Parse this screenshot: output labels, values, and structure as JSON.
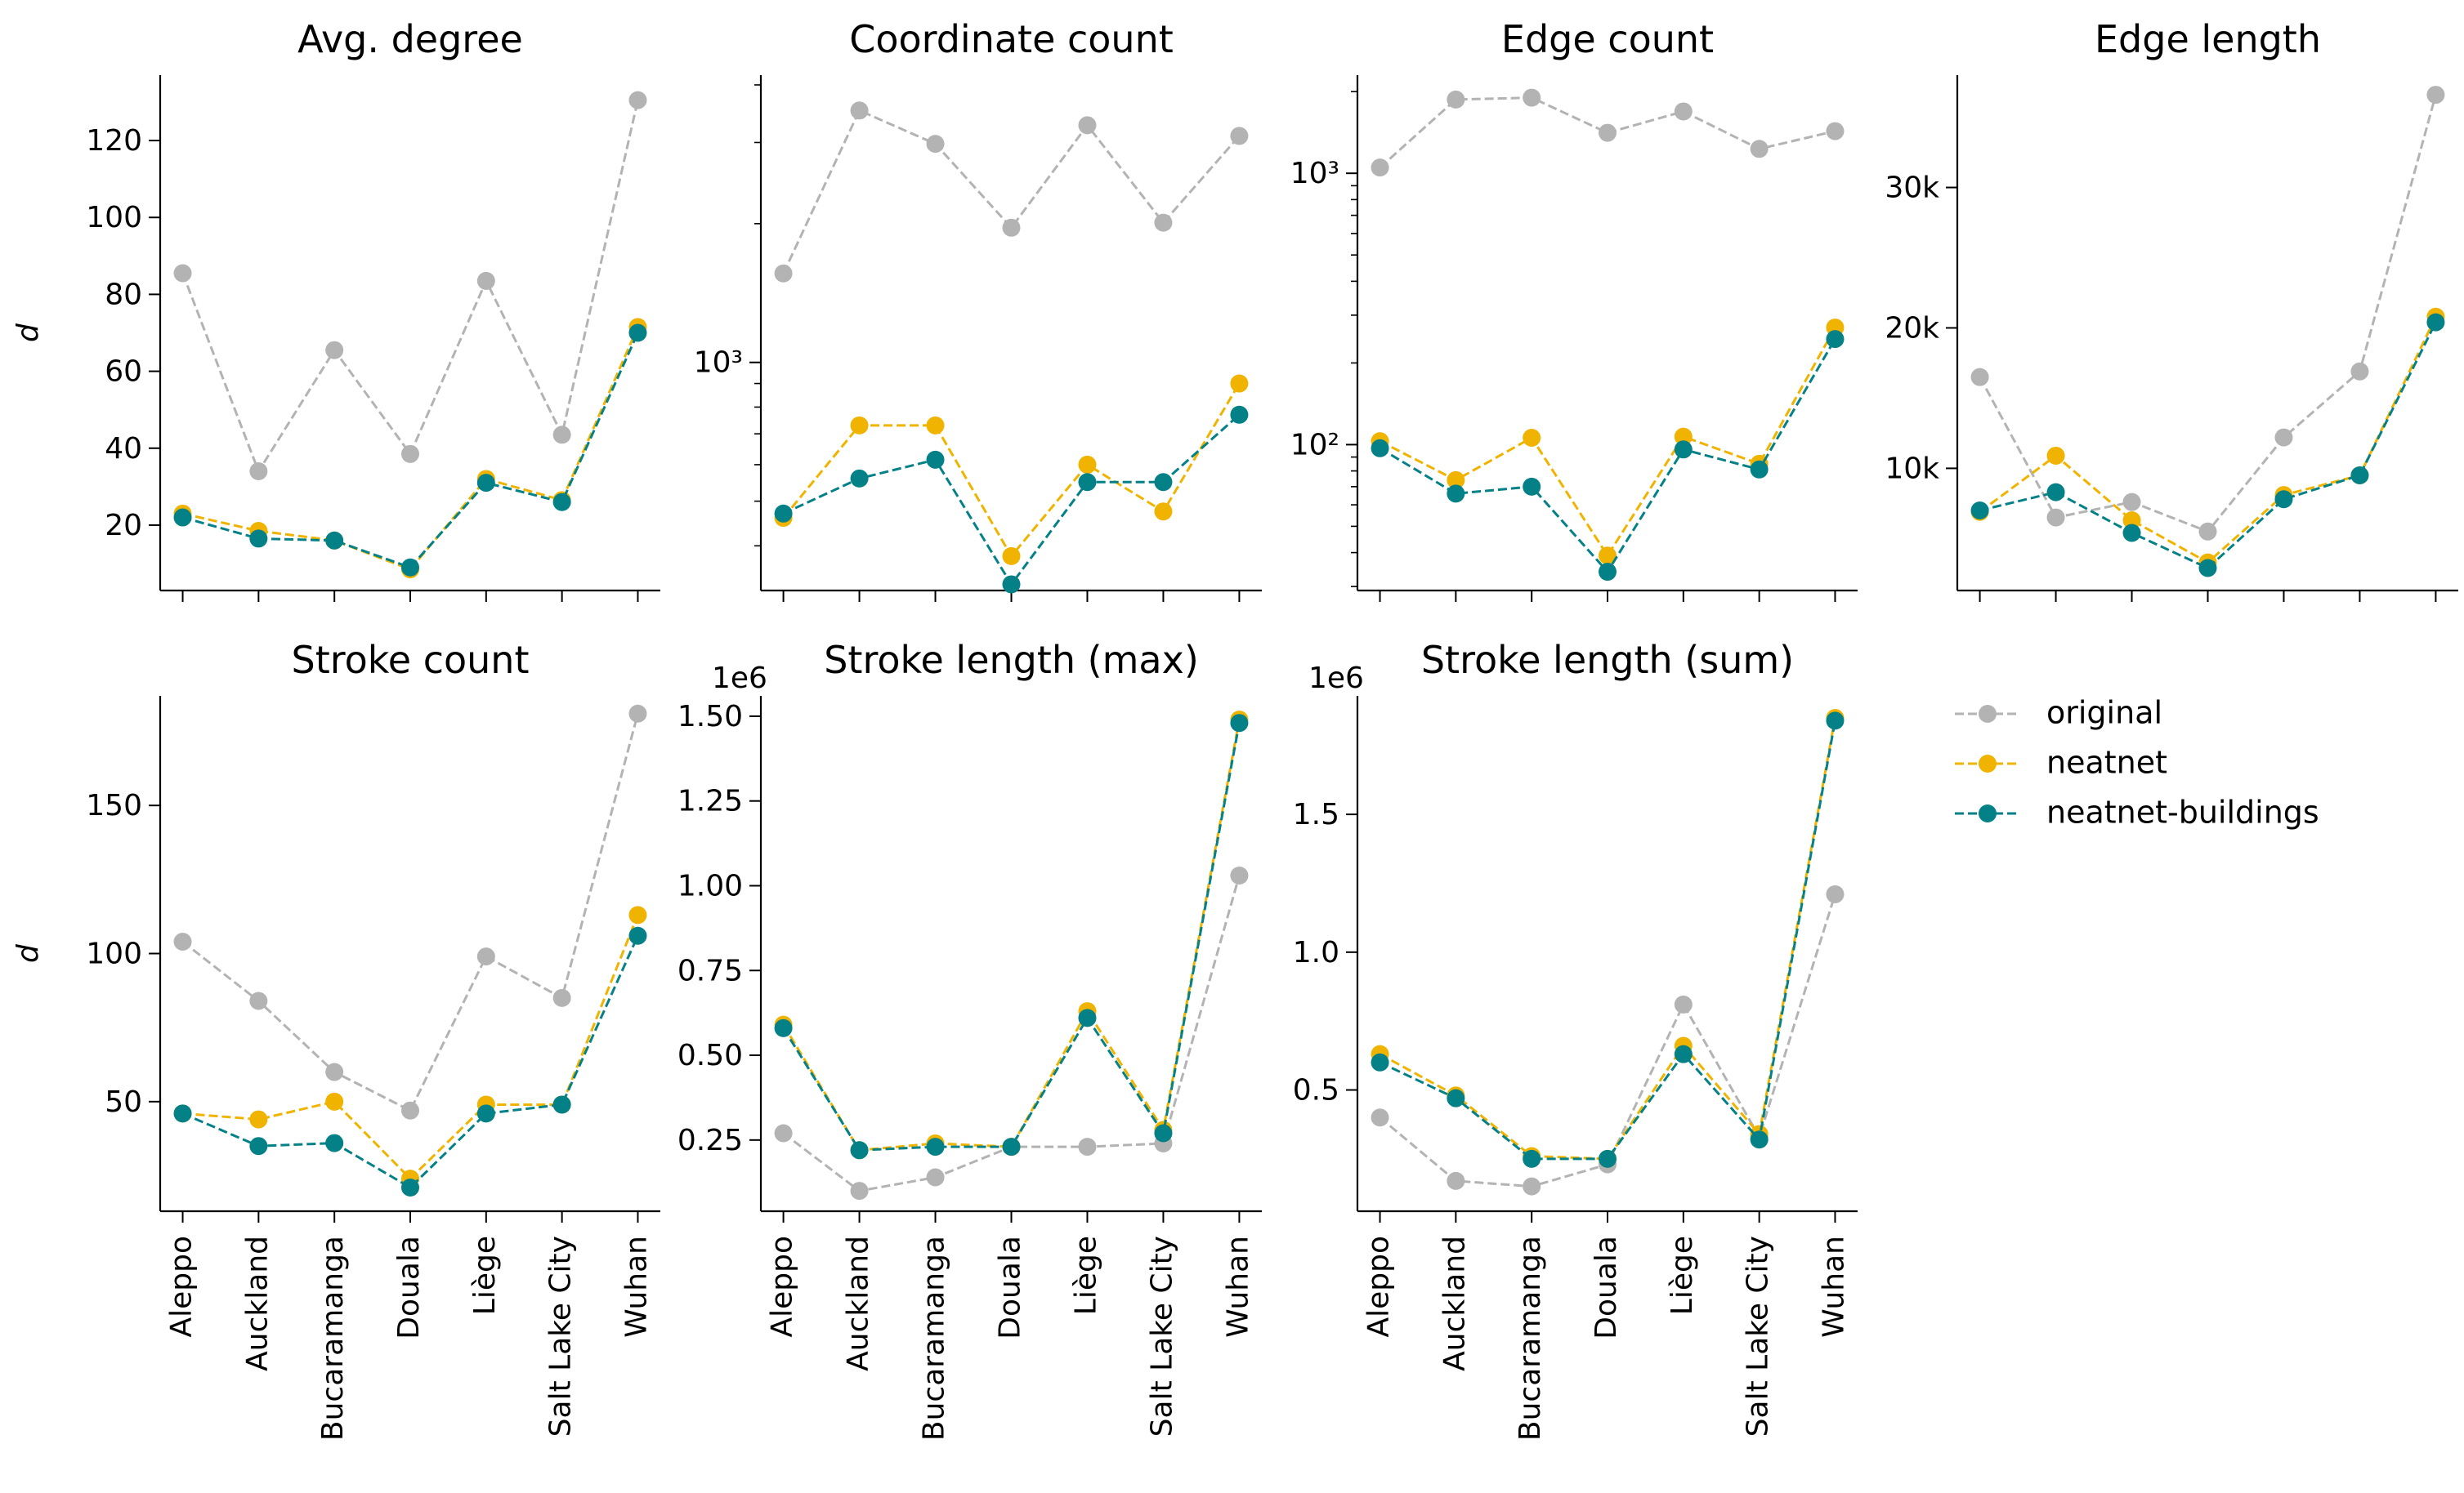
{
  "colors": {
    "original": "#b3b3b3",
    "neatnet": "#f0b400",
    "neatnet-buildings": "#038187"
  },
  "legend": [
    {
      "key": "original",
      "label": "original"
    },
    {
      "key": "neatnet",
      "label": "neatnet"
    },
    {
      "key": "neatnet-buildings",
      "label": "neatnet-buildings"
    }
  ],
  "chart_data": [
    {
      "type": "line",
      "title": "Avg. degree",
      "ylabel": "d",
      "scale": "linear",
      "ylim": [
        3,
        137
      ],
      "yticks": [
        20,
        40,
        60,
        80,
        100,
        120
      ],
      "ytick_labels": [
        "20",
        "40",
        "60",
        "80",
        "100",
        "120"
      ],
      "categories": [
        "Aleppo",
        "Auckland",
        "Bucaramanga",
        "Douala",
        "Liège",
        "Salt Lake City",
        "Wuhan"
      ],
      "series": [
        {
          "name": "original",
          "values": [
            85.5,
            34,
            65.5,
            38.5,
            83.5,
            43.5,
            130.5
          ]
        },
        {
          "name": "neatnet",
          "values": [
            23,
            18.5,
            16,
            8.5,
            32,
            26.5,
            71.5
          ]
        },
        {
          "name": "neatnet-buildings",
          "values": [
            22,
            16.5,
            16,
            9,
            31,
            26,
            70
          ]
        }
      ]
    },
    {
      "type": "line",
      "title": "Coordinate count",
      "ylabel": "",
      "scale": "log",
      "ylim": [
        320,
        4200
      ],
      "yticks": [
        1000
      ],
      "ytick_labels": [
        "10³"
      ],
      "categories": [
        "Aleppo",
        "Auckland",
        "Bucaramanga",
        "Douala",
        "Liège",
        "Salt Lake City",
        "Wuhan"
      ],
      "series": [
        {
          "name": "original",
          "values": [
            1560,
            3520,
            2980,
            1960,
            3270,
            2010,
            3100
          ]
        },
        {
          "name": "neatnet",
          "values": [
            460,
            730,
            730,
            380,
            600,
            475,
            900
          ]
        },
        {
          "name": "neatnet-buildings",
          "values": [
            470,
            560,
            615,
            330,
            550,
            550,
            770
          ]
        }
      ]
    },
    {
      "type": "line",
      "title": "Edge count",
      "ylabel": "",
      "scale": "log",
      "ylim": [
        29,
        2300
      ],
      "yticks": [
        100,
        1000
      ],
      "ytick_labels": [
        "10²",
        "10³"
      ],
      "categories": [
        "Aleppo",
        "Auckland",
        "Bucaramanga",
        "Douala",
        "Liège",
        "Salt Lake City",
        "Wuhan"
      ],
      "series": [
        {
          "name": "original",
          "values": [
            1050,
            1870,
            1900,
            1410,
            1690,
            1230,
            1430
          ]
        },
        {
          "name": "neatnet",
          "values": [
            103,
            74,
            106,
            39,
            107,
            85,
            270
          ]
        },
        {
          "name": "neatnet-buildings",
          "values": [
            97,
            66,
            70,
            34,
            96,
            81,
            245
          ]
        }
      ]
    },
    {
      "type": "line",
      "title": "Edge length",
      "ylabel": "",
      "scale": "linear",
      "ylim": [
        1300,
        38000
      ],
      "yticks": [
        10000,
        20000,
        30000
      ],
      "ytick_labels": [
        "10k",
        "20k",
        "30k"
      ],
      "categories": [
        "Aleppo",
        "Auckland",
        "Bucaramanga",
        "Douala",
        "Liège",
        "Salt Lake City",
        "Wuhan"
      ],
      "series": [
        {
          "name": "original",
          "values": [
            16500,
            6500,
            7600,
            5500,
            12200,
            16900,
            36600
          ]
        },
        {
          "name": "neatnet",
          "values": [
            6900,
            10900,
            6300,
            3300,
            8100,
            9500,
            20800
          ]
        },
        {
          "name": "neatnet-buildings",
          "values": [
            7000,
            8300,
            5400,
            2900,
            7800,
            9500,
            20400
          ]
        }
      ]
    },
    {
      "type": "line",
      "title": "Stroke count",
      "ylabel": "d",
      "scale": "linear",
      "ylim": [
        13,
        187
      ],
      "yticks": [
        50,
        100,
        150
      ],
      "ytick_labels": [
        "50",
        "100",
        "150"
      ],
      "categories": [
        "Aleppo",
        "Auckland",
        "Bucaramanga",
        "Douala",
        "Liège",
        "Salt Lake City",
        "Wuhan"
      ],
      "series": [
        {
          "name": "original",
          "values": [
            104,
            84,
            60,
            47,
            99,
            85,
            181
          ]
        },
        {
          "name": "neatnet",
          "values": [
            46,
            44,
            50,
            24,
            49,
            49,
            113
          ]
        },
        {
          "name": "neatnet-buildings",
          "values": [
            46,
            35,
            36,
            21,
            46,
            49,
            106
          ]
        }
      ]
    },
    {
      "type": "line",
      "title": "Stroke length (max)",
      "ylabel": "",
      "offset_label": "1e6",
      "scale": "linear",
      "ylim": [
        0.04,
        1.56
      ],
      "yticks": [
        0.25,
        0.5,
        0.75,
        1.0,
        1.25,
        1.5
      ],
      "ytick_labels": [
        "0.25",
        "0.50",
        "0.75",
        "1.00",
        "1.25",
        "1.50"
      ],
      "categories": [
        "Aleppo",
        "Auckland",
        "Bucaramanga",
        "Douala",
        "Liège",
        "Salt Lake City",
        "Wuhan"
      ],
      "series": [
        {
          "name": "original",
          "values": [
            0.27,
            0.1,
            0.14,
            0.23,
            0.23,
            0.24,
            1.03
          ]
        },
        {
          "name": "neatnet",
          "values": [
            0.59,
            0.22,
            0.24,
            0.23,
            0.63,
            0.28,
            1.49
          ]
        },
        {
          "name": "neatnet-buildings",
          "values": [
            0.58,
            0.22,
            0.23,
            0.23,
            0.61,
            0.27,
            1.48
          ]
        }
      ]
    },
    {
      "type": "line",
      "title": "Stroke length (sum)",
      "ylabel": "",
      "offset_label": "1e6",
      "scale": "linear",
      "ylim": [
        0.06,
        1.93
      ],
      "yticks": [
        0.5,
        1.0,
        1.5
      ],
      "ytick_labels": [
        "0.5",
        "1.0",
        "1.5"
      ],
      "categories": [
        "Aleppo",
        "Auckland",
        "Bucaramanga",
        "Douala",
        "Liège",
        "Salt Lake City",
        "Wuhan"
      ],
      "series": [
        {
          "name": "original",
          "values": [
            0.4,
            0.17,
            0.15,
            0.23,
            0.81,
            0.33,
            1.21
          ]
        },
        {
          "name": "neatnet",
          "values": [
            0.63,
            0.48,
            0.26,
            0.25,
            0.66,
            0.34,
            1.85
          ]
        },
        {
          "name": "neatnet-buildings",
          "values": [
            0.6,
            0.47,
            0.25,
            0.25,
            0.63,
            0.32,
            1.84
          ]
        }
      ]
    }
  ]
}
